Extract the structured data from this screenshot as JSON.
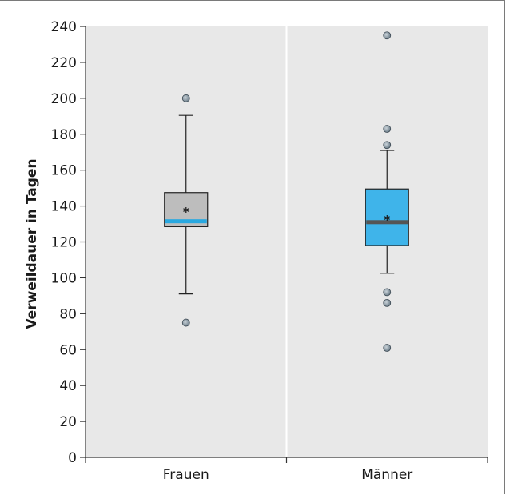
{
  "chart_data": {
    "type": "box",
    "ylabel": "Verweildauer in Tagen",
    "xlabel": "",
    "ylim": [
      0,
      240
    ],
    "yticks": [
      0,
      20,
      40,
      60,
      80,
      100,
      120,
      140,
      160,
      180,
      200,
      220,
      240
    ],
    "grid": false,
    "categories": [
      "Frauen",
      "Männer"
    ],
    "series": [
      {
        "category": "Frauen",
        "whisker_low": 91,
        "q1": 128.5,
        "median": 131.5,
        "q3": 147.5,
        "whisker_high": 190.5,
        "mean": 138,
        "outliers": [
          200,
          75
        ],
        "box_color": "#bdbdbd",
        "median_color": "#29a8e0"
      },
      {
        "category": "Männer",
        "whisker_low": 102.5,
        "q1": 118,
        "median": 131,
        "q3": 149.5,
        "whisker_high": 171,
        "mean": 133.5,
        "outliers": [
          235,
          183,
          174,
          92,
          86,
          61
        ],
        "box_color": "#3fb4ea",
        "median_color": "#555555"
      }
    ],
    "colors": {
      "plot_background": "#e8e8e8",
      "outlier_fill": "#8a9aa6"
    }
  }
}
